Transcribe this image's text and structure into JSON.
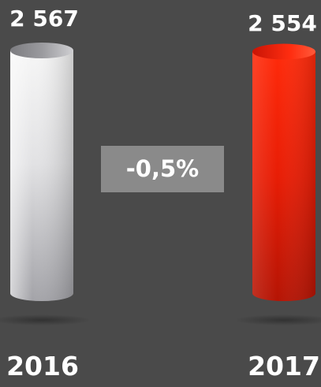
{
  "chart_data": {
    "type": "bar",
    "categories": [
      "2016",
      "2017"
    ],
    "values": [
      2567,
      2554
    ],
    "value_labels": [
      "2 567",
      "2 554"
    ],
    "ylim": [
      0,
      2567
    ],
    "change_label": "-0,5%",
    "colors": {
      "background": "#4a4a4a",
      "bar_2016_light": "#f4f4f4",
      "bar_2016_dark": "#a9a9ad",
      "bar_2017_light": "#ff2a0a",
      "bar_2017_dark": "#b81505",
      "change_box": "#8a8a8a",
      "text": "#ffffff"
    },
    "grid": false,
    "legend": "none"
  }
}
